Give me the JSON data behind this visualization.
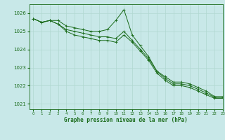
{
  "title": "Graphe pression niveau de la mer (hPa)",
  "background_color": "#c8e8e8",
  "grid_color": "#b0d8d0",
  "line_color": "#1a6b1a",
  "xlim": [
    -0.5,
    23
  ],
  "ylim": [
    1020.7,
    1026.5
  ],
  "yticks": [
    1021,
    1022,
    1023,
    1024,
    1025,
    1026
  ],
  "xticks": [
    0,
    1,
    2,
    3,
    4,
    5,
    6,
    7,
    8,
    9,
    10,
    11,
    12,
    13,
    14,
    15,
    16,
    17,
    18,
    19,
    20,
    21,
    22,
    23
  ],
  "series1": [
    1025.7,
    1025.5,
    1025.6,
    1025.6,
    1025.3,
    1025.2,
    1025.1,
    1025.0,
    1025.0,
    1025.1,
    1025.6,
    1026.2,
    1024.8,
    1024.2,
    1023.6,
    1022.8,
    1022.5,
    1022.2,
    1022.2,
    1022.1,
    1021.9,
    1021.7,
    1021.4,
    1021.4
  ],
  "series2": [
    1025.7,
    1025.5,
    1025.6,
    1025.4,
    1025.1,
    1025.0,
    1024.9,
    1024.8,
    1024.7,
    1024.7,
    1024.6,
    1025.0,
    1024.5,
    1024.0,
    1023.5,
    1022.8,
    1022.4,
    1022.1,
    1022.1,
    1022.0,
    1021.8,
    1021.6,
    1021.35,
    1021.35
  ],
  "series3": [
    1025.7,
    1025.5,
    1025.6,
    1025.4,
    1025.0,
    1024.8,
    1024.7,
    1024.6,
    1024.5,
    1024.5,
    1024.4,
    1024.8,
    1024.4,
    1023.9,
    1023.4,
    1022.7,
    1022.3,
    1022.0,
    1022.0,
    1021.9,
    1021.7,
    1021.5,
    1021.3,
    1021.3
  ]
}
